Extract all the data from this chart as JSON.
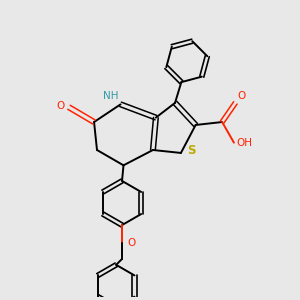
{
  "background_color": "#e8e8e8",
  "bond_color": "#000000",
  "nitrogen_color": "#3399aa",
  "oxygen_color": "#ff2200",
  "sulfur_color": "#bbaa00",
  "figsize": [
    3.0,
    3.0
  ],
  "dpi": 100,
  "xlim": [
    0,
    10
  ],
  "ylim": [
    0,
    10
  ]
}
